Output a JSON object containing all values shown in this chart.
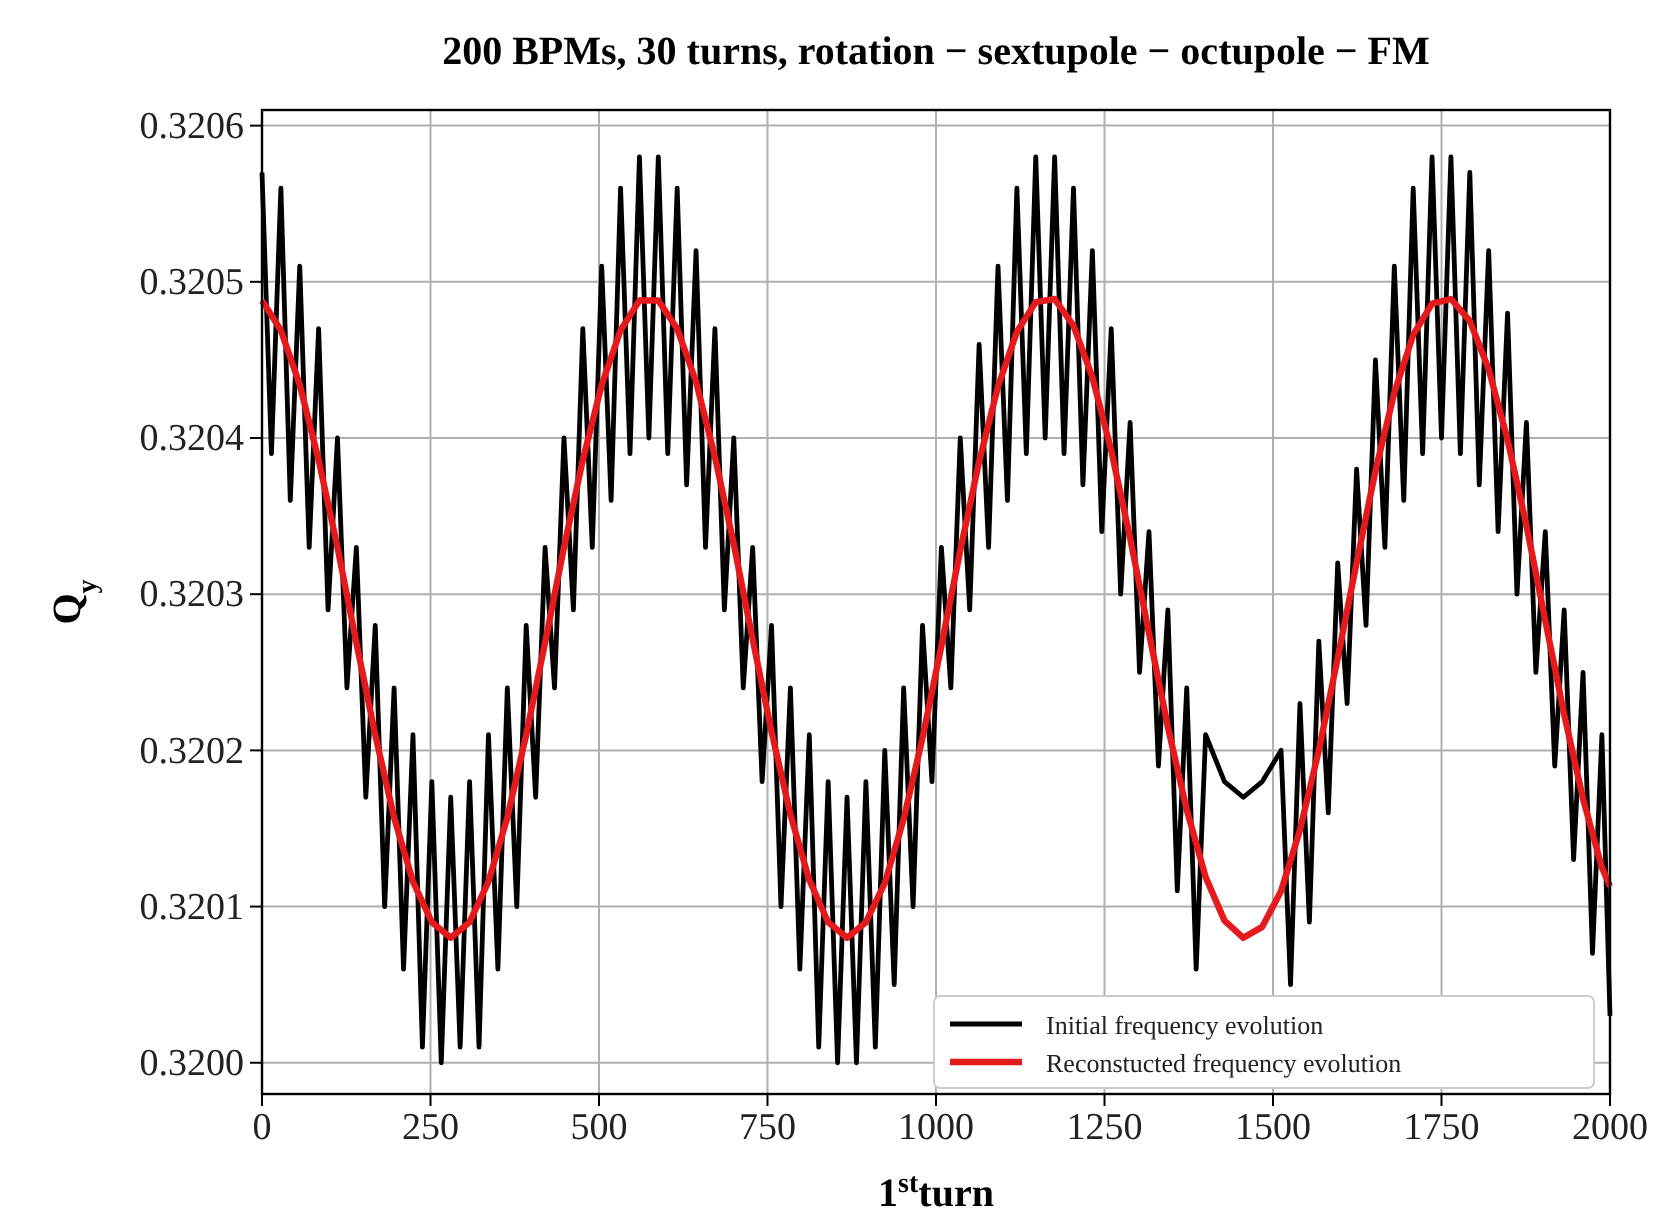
{
  "chart_data": {
    "type": "line",
    "title": "200 BPMs, 30 turns, rotation − sextupole − octupole − FM",
    "xlabel": "1$^{st}$turn",
    "ylabel": "Q$_{y}$",
    "xlim": [
      0,
      2000
    ],
    "xticks": [
      0,
      250,
      500,
      750,
      1000,
      1250,
      1500,
      1750,
      2000
    ],
    "ylim": [
      0.31998,
      0.32061
    ],
    "yticks": [
      {
        "value": 0.32,
        "label": "0.3200"
      },
      0.3201,
      0.3202,
      0.3203,
      0.3204,
      0.3205,
      0.3206
    ],
    "grid": true,
    "legend": "bottom right",
    "line_style": "solid",
    "marker": "none",
    "series": [
      {
        "name": "Initial frequency evolution",
        "color": "#000000",
        "x": [
          0,
          14,
          28,
          42,
          56,
          70,
          84,
          98,
          112,
          126,
          140,
          154,
          168,
          182,
          196,
          210,
          224,
          238,
          252,
          266,
          280,
          294,
          308,
          322,
          336,
          350,
          364,
          378,
          392,
          406,
          420,
          434,
          448,
          462,
          476,
          490,
          504,
          518,
          532,
          546,
          560,
          574,
          588,
          602,
          616,
          630,
          644,
          658,
          672,
          686,
          700,
          714,
          728,
          742,
          756,
          770,
          784,
          798,
          812,
          826,
          840,
          854,
          868,
          882,
          896,
          910,
          924,
          938,
          952,
          966,
          980,
          994,
          1008,
          1022,
          1036,
          1050,
          1064,
          1078,
          1092,
          1106,
          1120,
          1134,
          1148,
          1162,
          1176,
          1190,
          1204,
          1218,
          1232,
          1246,
          1260,
          1274,
          1288,
          1302,
          1316,
          1330,
          1344,
          1358,
          1372,
          1386,
          1400,
          1414,
          1428,
          1442,
          1456,
          1470,
          1484,
          1498,
          1512,
          1526,
          1540,
          1554,
          1568,
          1582,
          1596,
          1610,
          1624,
          1638,
          1652,
          1666,
          1680,
          1694,
          1708,
          1722,
          1736,
          1750,
          1764,
          1778,
          1792,
          1806,
          1820,
          1834,
          1848,
          1862,
          1876,
          1890,
          1904,
          1918,
          1932,
          1946,
          1960,
          1974,
          1988,
          2000
        ],
        "values": [
          0.32057,
          0.32039,
          0.32056,
          0.32036,
          0.32051,
          0.32033,
          0.32047,
          0.32029,
          0.3204,
          0.32024,
          0.32033,
          0.32017,
          0.32028,
          0.3201,
          0.32024,
          0.32006,
          0.32021,
          0.32001,
          0.32018,
          0.32,
          0.32017,
          0.32001,
          0.32018,
          0.32001,
          0.32021,
          0.32006,
          0.32024,
          0.3201,
          0.32028,
          0.32017,
          0.32033,
          0.32024,
          0.3204,
          0.32029,
          0.32047,
          0.32033,
          0.32051,
          0.32036,
          0.32056,
          0.32039,
          0.32058,
          0.3204,
          0.32058,
          0.32039,
          0.32056,
          0.32037,
          0.32052,
          0.32033,
          0.32047,
          0.32029,
          0.3204,
          0.32024,
          0.32033,
          0.32018,
          0.32028,
          0.3201,
          0.32024,
          0.32006,
          0.32021,
          0.32001,
          0.32018,
          0.32,
          0.32017,
          0.32,
          0.32018,
          0.32001,
          0.3202,
          0.32005,
          0.32024,
          0.3201,
          0.32028,
          0.32018,
          0.32033,
          0.32024,
          0.3204,
          0.32029,
          0.32046,
          0.32033,
          0.32051,
          0.32036,
          0.32056,
          0.32039,
          0.32058,
          0.3204,
          0.32058,
          0.32039,
          0.32056,
          0.32037,
          0.32052,
          0.32034,
          0.32047,
          0.3203,
          0.32041,
          0.32025,
          0.32034,
          0.32019,
          0.32029,
          0.32011,
          0.32024,
          0.32006,
          0.32021,
          null,
          0.32018,
          null,
          0.32017,
          null,
          0.32018,
          null,
          0.3202,
          0.32005,
          0.32023,
          0.32009,
          0.32027,
          0.32016,
          0.32032,
          0.32023,
          0.32038,
          0.32028,
          0.32045,
          0.32033,
          0.32051,
          0.32036,
          0.32056,
          0.32039,
          0.32058,
          0.3204,
          0.32058,
          0.32039,
          0.32057,
          0.32037,
          0.32052,
          0.32034,
          0.32048,
          0.3203,
          0.32041,
          0.32025,
          0.32034,
          0.32019,
          0.32029,
          0.32013,
          0.32025,
          0.32007,
          0.32021,
          0.32003
        ]
      },
      {
        "name": "Reconstucted frequency evolution",
        "color": "#e41a1c",
        "x": [
          0,
          28,
          56,
          84,
          112,
          140,
          168,
          196,
          224,
          252,
          280,
          308,
          336,
          364,
          392,
          420,
          448,
          476,
          504,
          532,
          560,
          588,
          616,
          644,
          672,
          700,
          728,
          756,
          784,
          812,
          840,
          868,
          896,
          924,
          952,
          980,
          1008,
          1036,
          1064,
          1092,
          1120,
          1148,
          1176,
          1204,
          1232,
          1260,
          1288,
          1316,
          1344,
          1372,
          1400,
          1428,
          1456,
          1484,
          1512,
          1540,
          1568,
          1596,
          1624,
          1652,
          1680,
          1708,
          1736,
          1764,
          1792,
          1820,
          1848,
          1876,
          1904,
          1932,
          1960,
          1988,
          2000
        ],
        "values": [
          0.320488,
          0.320469,
          0.320434,
          0.320386,
          0.32033,
          0.320269,
          0.32021,
          0.320157,
          0.320116,
          0.32009,
          0.32008,
          0.32009,
          0.320116,
          0.320157,
          0.32021,
          0.320269,
          0.32033,
          0.320386,
          0.320434,
          0.320469,
          0.320488,
          0.320488,
          0.32047,
          0.320436,
          0.320388,
          0.320332,
          0.320271,
          0.320212,
          0.320159,
          0.320117,
          0.32009,
          0.32008,
          0.32009,
          0.320115,
          0.320156,
          0.320208,
          0.320267,
          0.320328,
          0.320385,
          0.320433,
          0.320468,
          0.320487,
          0.320489,
          0.320472,
          0.320439,
          0.320392,
          0.320336,
          0.320275,
          0.320215,
          0.320162,
          0.320119,
          0.320091,
          0.32008,
          0.320087,
          0.32011,
          0.320149,
          0.3202,
          0.320259,
          0.32032,
          0.320379,
          0.320429,
          0.320466,
          0.320486,
          0.320489,
          0.320475,
          0.320444,
          0.320399,
          0.320344,
          0.320283,
          0.320223,
          0.320169,
          0.320125,
          0.320113
        ]
      }
    ]
  }
}
